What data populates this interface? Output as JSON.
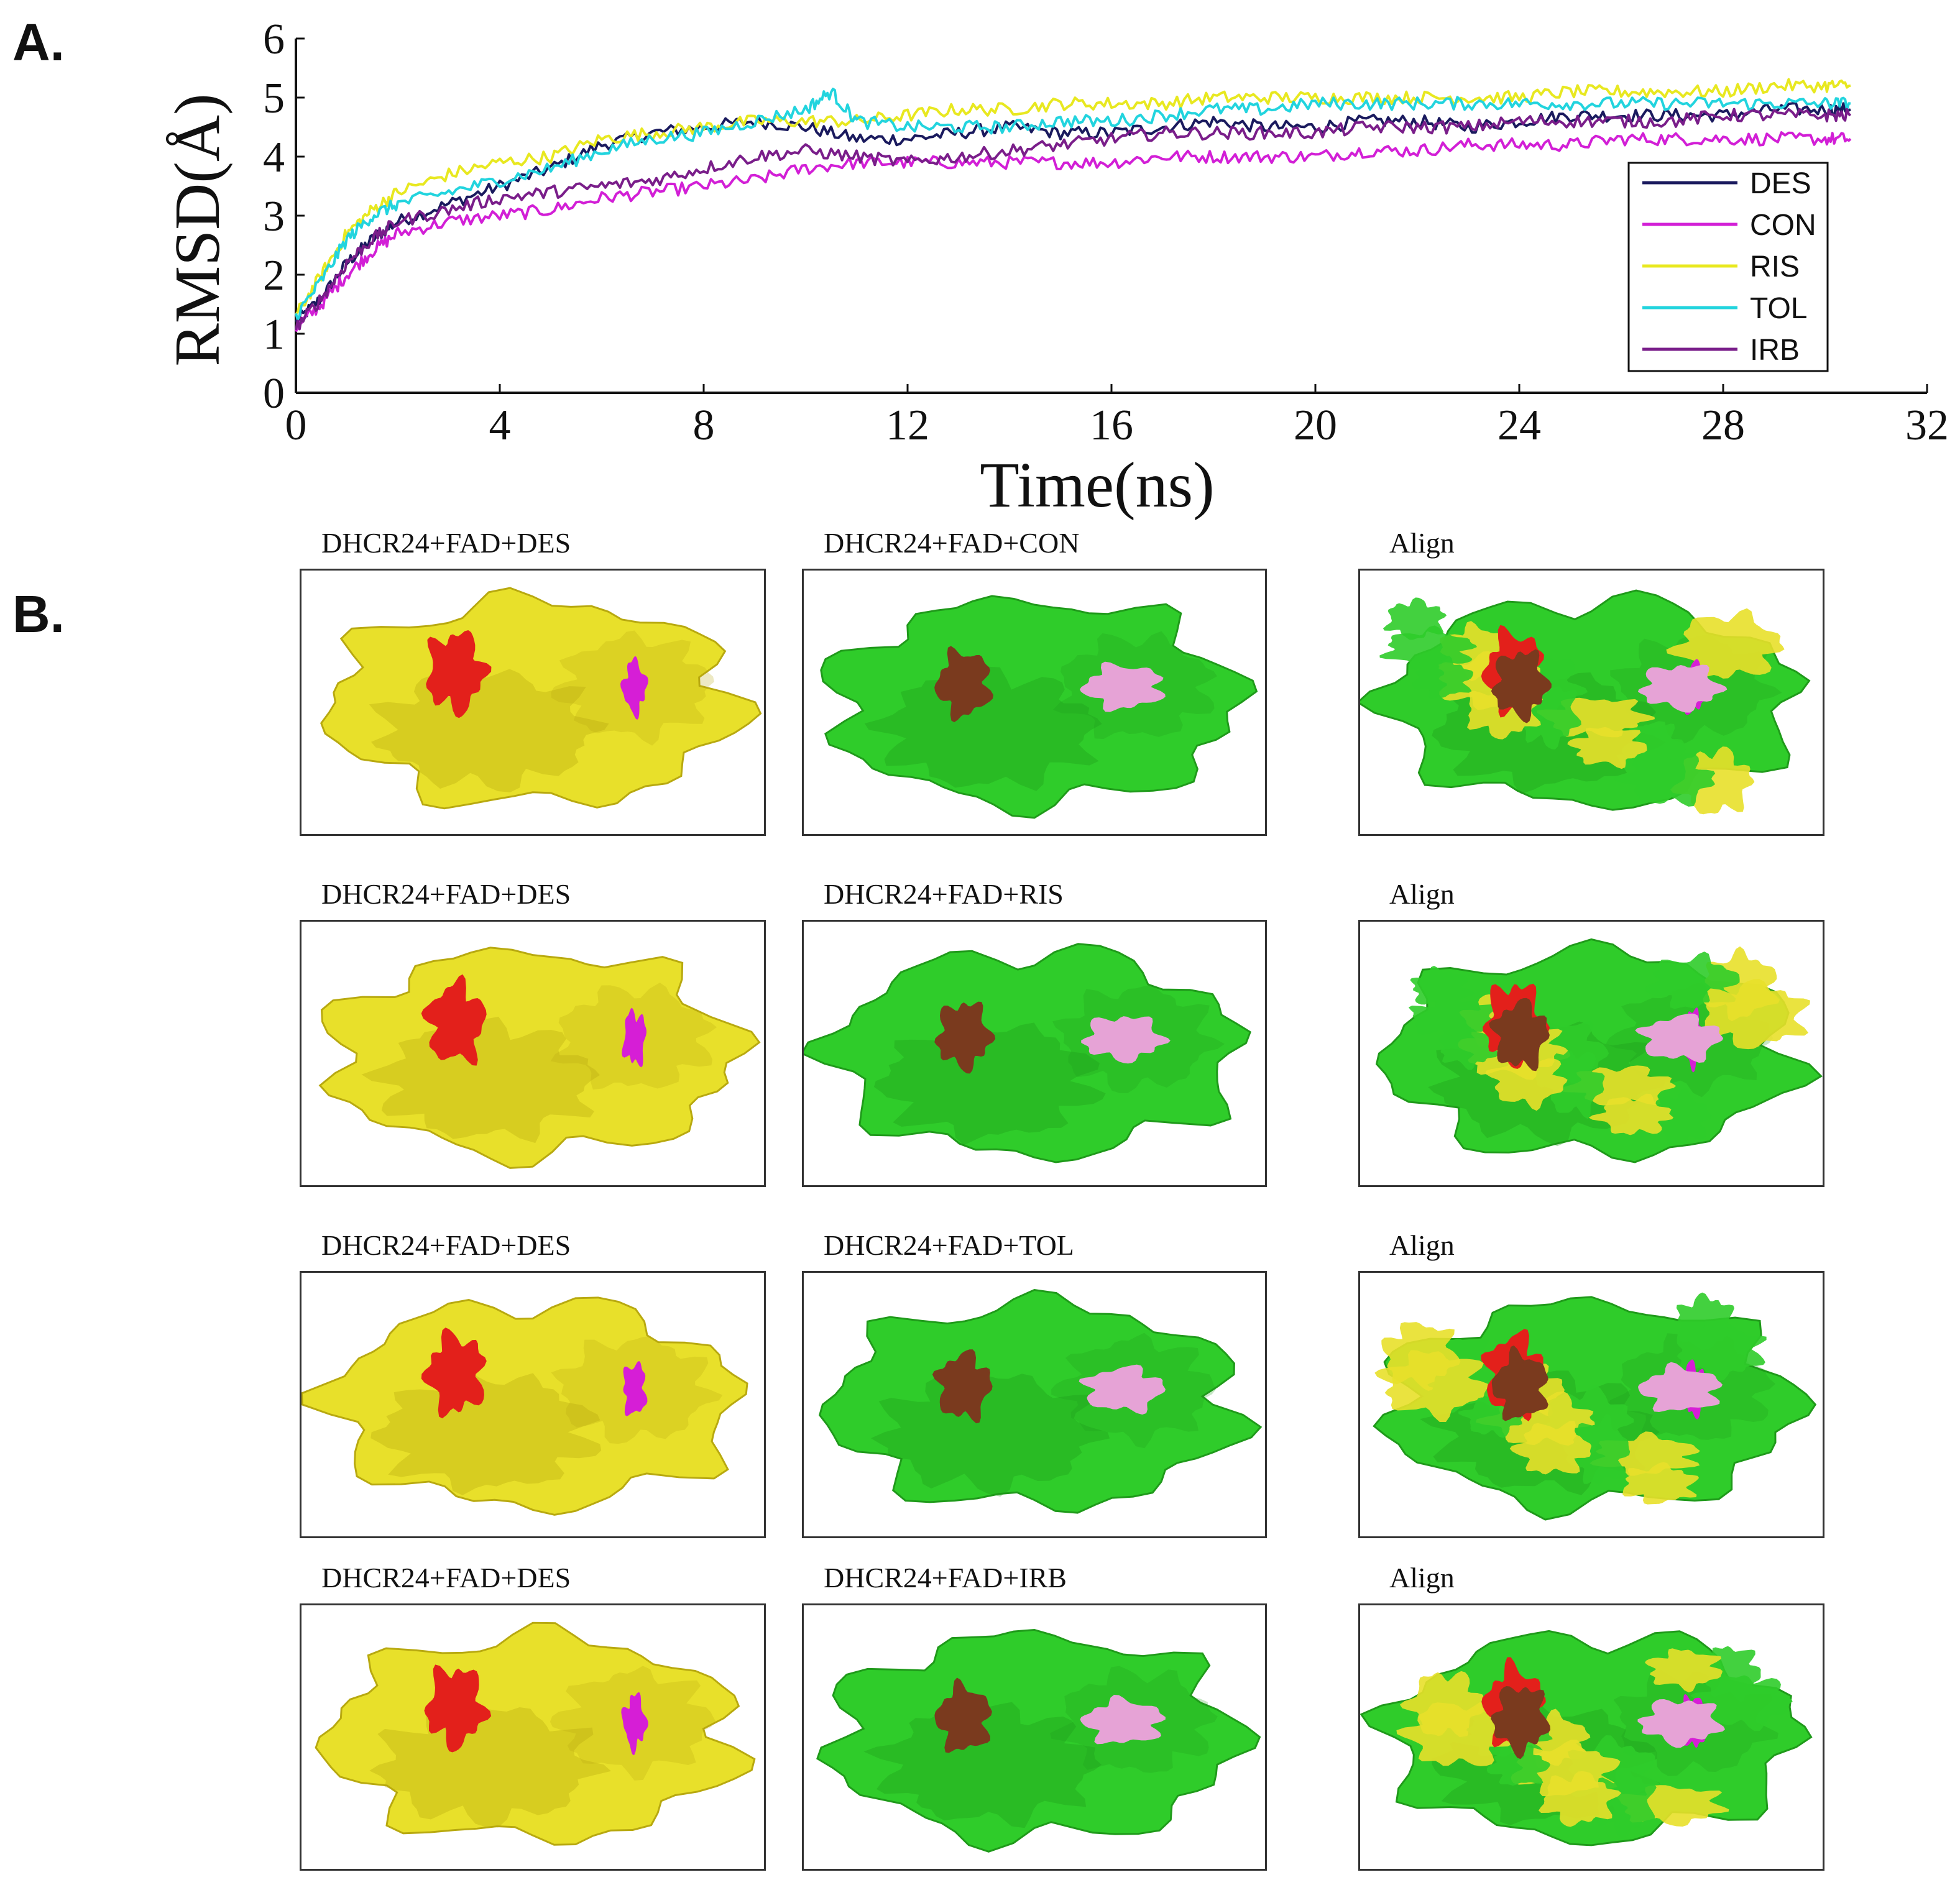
{
  "panel_a": {
    "letter": "A."
  },
  "panel_b": {
    "letter": "B."
  },
  "chart_data": {
    "type": "line",
    "title": "",
    "xlabel": "Time(ns)",
    "ylabel": "RMSD(Å)",
    "xlim": [
      0,
      32
    ],
    "ylim": [
      0,
      6
    ],
    "xticks": [
      0,
      4,
      8,
      12,
      16,
      20,
      24,
      28,
      32
    ],
    "yticks": [
      0,
      1,
      2,
      3,
      4,
      5,
      6
    ],
    "legend_position": "right",
    "series": [
      {
        "name": "DES",
        "color": "#1a1a5e",
        "x": [
          0,
          0.5,
          1,
          1.5,
          2,
          3,
          4,
          5,
          6,
          7,
          8,
          9,
          10,
          11,
          12,
          13,
          14,
          15,
          16,
          17,
          18,
          19,
          20,
          21,
          22,
          23,
          24,
          25,
          26,
          27,
          28,
          29,
          30,
          30.5
        ],
        "y": [
          1.2,
          1.6,
          2.2,
          2.6,
          2.9,
          3.2,
          3.5,
          3.8,
          4.2,
          4.4,
          4.5,
          4.6,
          4.5,
          4.3,
          4.3,
          4.4,
          4.5,
          4.4,
          4.4,
          4.5,
          4.6,
          4.5,
          4.5,
          4.6,
          4.6,
          4.5,
          4.6,
          4.7,
          4.7,
          4.7,
          4.7,
          4.8,
          4.8,
          4.8
        ]
      },
      {
        "name": "CON",
        "color": "#d21fd6",
        "x": [
          0,
          0.5,
          1,
          1.5,
          2,
          3,
          4,
          5,
          6,
          7,
          8,
          9,
          10,
          11,
          12,
          13,
          14,
          15,
          16,
          17,
          18,
          19,
          20,
          21,
          22,
          23,
          24,
          25,
          26,
          27,
          28,
          29,
          30,
          30.5
        ],
        "y": [
          1.1,
          1.5,
          2.0,
          2.4,
          2.7,
          2.9,
          3.0,
          3.1,
          3.3,
          3.4,
          3.5,
          3.6,
          3.8,
          3.9,
          3.9,
          3.9,
          3.9,
          3.9,
          3.9,
          4.0,
          4.0,
          4.0,
          4.0,
          4.1,
          4.1,
          4.2,
          4.2,
          4.2,
          4.3,
          4.3,
          4.3,
          4.3,
          4.3,
          4.3
        ]
      },
      {
        "name": "RIS",
        "color": "#e8e820",
        "x": [
          0,
          0.5,
          1,
          1.5,
          2,
          3,
          4,
          5,
          6,
          7,
          8,
          9,
          10,
          11,
          12,
          13,
          14,
          15,
          16,
          17,
          18,
          19,
          20,
          21,
          22,
          23,
          24,
          25,
          26,
          27,
          28,
          29,
          30,
          30.5
        ],
        "y": [
          1.3,
          2.0,
          2.7,
          3.1,
          3.4,
          3.7,
          3.9,
          4.0,
          4.3,
          4.4,
          4.5,
          4.6,
          4.6,
          4.6,
          4.7,
          4.8,
          4.8,
          4.9,
          4.9,
          4.9,
          5.0,
          5.0,
          5.0,
          5.0,
          5.0,
          5.0,
          5.0,
          5.1,
          5.1,
          5.1,
          5.1,
          5.2,
          5.2,
          5.2
        ]
      },
      {
        "name": "TOL",
        "color": "#22d4de",
        "x": [
          0,
          0.5,
          1,
          1.5,
          2,
          3,
          4,
          5,
          6,
          7,
          8,
          9,
          10,
          10.5,
          11,
          12,
          13,
          14,
          15,
          16,
          17,
          18,
          19,
          20,
          21,
          22,
          23,
          24,
          25,
          26,
          27,
          28,
          29,
          30,
          30.5
        ],
        "y": [
          1.3,
          1.9,
          2.6,
          3.0,
          3.2,
          3.4,
          3.6,
          3.8,
          4.1,
          4.3,
          4.4,
          4.6,
          4.8,
          5.1,
          4.6,
          4.5,
          4.5,
          4.5,
          4.6,
          4.6,
          4.7,
          4.8,
          4.8,
          4.9,
          4.9,
          4.9,
          4.9,
          4.9,
          4.9,
          4.9,
          4.9,
          4.9,
          4.9,
          4.9,
          4.9
        ]
      },
      {
        "name": "IRB",
        "color": "#7a1e8a",
        "x": [
          0,
          0.5,
          1,
          1.5,
          2,
          3,
          4,
          5,
          6,
          7,
          8,
          9,
          10,
          11,
          12,
          13,
          14,
          15,
          16,
          17,
          18,
          19,
          20,
          21,
          22,
          23,
          24,
          25,
          26,
          27,
          28,
          29,
          30,
          30.5
        ],
        "y": [
          1.1,
          1.6,
          2.2,
          2.6,
          2.9,
          3.1,
          3.3,
          3.4,
          3.5,
          3.6,
          3.8,
          4.0,
          4.1,
          4.0,
          3.9,
          4.0,
          4.1,
          4.2,
          4.3,
          4.4,
          4.4,
          4.4,
          4.4,
          4.5,
          4.5,
          4.5,
          4.6,
          4.6,
          4.6,
          4.6,
          4.7,
          4.7,
          4.7,
          4.7
        ]
      }
    ]
  },
  "grid_rows": [
    {
      "left": "DHCR24+FAD+DES",
      "mid": "DHCR24+FAD+CON",
      "right": "Align"
    },
    {
      "left": "DHCR24+FAD+DES",
      "mid": "DHCR24+FAD+RIS",
      "right": "Align"
    },
    {
      "left": "DHCR24+FAD+DES",
      "mid": "DHCR24+FAD+TOL",
      "right": "Align"
    },
    {
      "left": "DHCR24+FAD+DES",
      "mid": "DHCR24+FAD+IRB",
      "right": "Align"
    }
  ],
  "colors": {
    "protein_des": "#e8e02a",
    "protein_other": "#2fcc2a",
    "fad_des": "#e3201b",
    "fad_other": "#7a3a1e",
    "ligand_des": "#d61ed6",
    "ligand_other": "#e6a3d6"
  }
}
